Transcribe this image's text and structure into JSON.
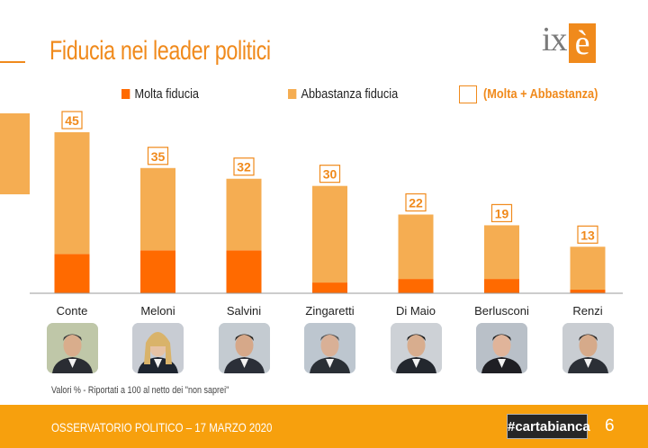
{
  "slide": {
    "title": "Fiducia nei leader politici",
    "logo_prefix": "ix",
    "logo_box": "è",
    "note": "Valori % - Riportati a 100 al netto dei \"non saprei\"",
    "footer": "OSSERVATORIO POLITICO – 17 MARZO 2020",
    "brand": "#cartabianca",
    "page_number": "6"
  },
  "colors": {
    "accent": "#f08a1c",
    "molta": "#ff6a00",
    "abbastanza": "#f5ad52",
    "footer": "#f7a00d"
  },
  "chart_data": {
    "type": "bar",
    "stacked": true,
    "title": "Fiducia nei leader politici",
    "categories": [
      "Conte",
      "Meloni",
      "Salvini",
      "Zingaretti",
      "Di Maio",
      "Berlusconi",
      "Renzi"
    ],
    "series": [
      {
        "name": "Molta fiducia",
        "values": [
          11,
          12,
          12,
          3,
          4,
          4,
          1
        ]
      },
      {
        "name": "Abbastanza fiducia",
        "values": [
          34,
          23,
          20,
          27,
          18,
          15,
          12
        ]
      }
    ],
    "totals_label": "(Molta + Abbastanza)",
    "totals": [
      45,
      35,
      32,
      30,
      22,
      19,
      13
    ],
    "ylim": [
      0,
      45
    ],
    "legend": [
      "Molta fiducia",
      "Abbastanza fiducia",
      "(Molta + Abbastanza)"
    ],
    "legend_position": "top"
  },
  "photos": [
    {
      "name": "Conte",
      "icon": "portrait-conte"
    },
    {
      "name": "Meloni",
      "icon": "portrait-meloni"
    },
    {
      "name": "Salvini",
      "icon": "portrait-salvini"
    },
    {
      "name": "Zingaretti",
      "icon": "portrait-zingaretti"
    },
    {
      "name": "Di Maio",
      "icon": "portrait-di-maio"
    },
    {
      "name": "Berlusconi",
      "icon": "portrait-berlusconi"
    },
    {
      "name": "Renzi",
      "icon": "portrait-renzi"
    }
  ]
}
